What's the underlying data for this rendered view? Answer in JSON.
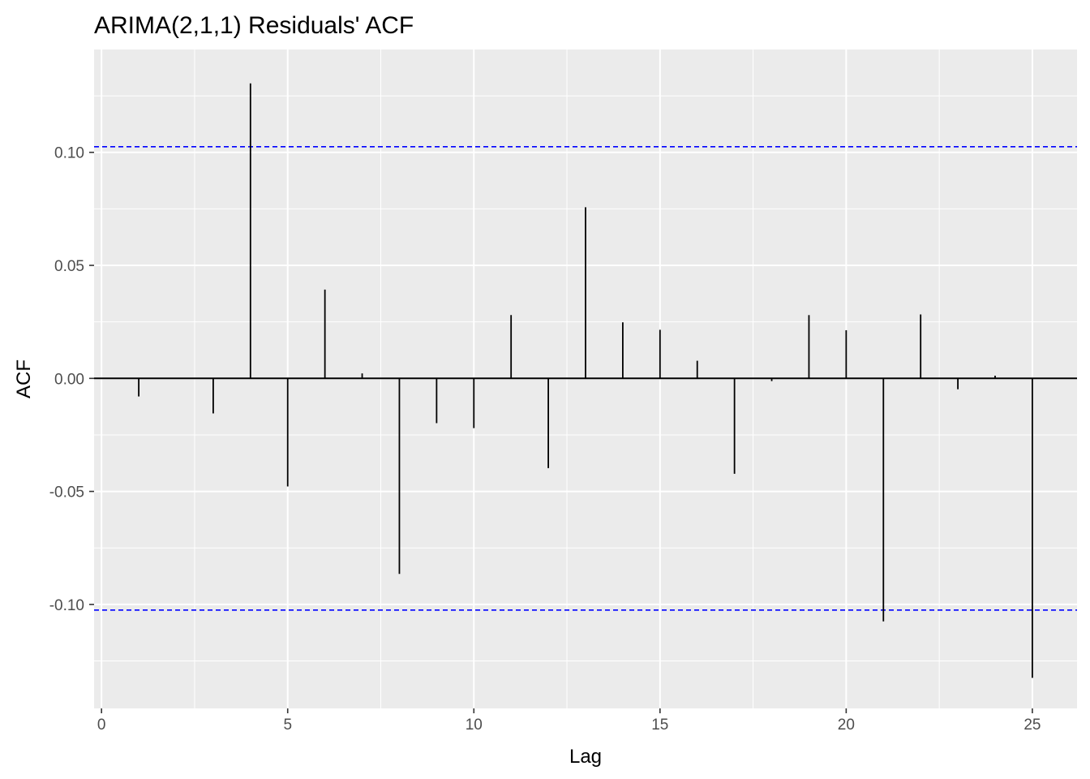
{
  "chart_data": {
    "type": "bar",
    "title": "ARIMA(2,1,1) Residuals' ACF",
    "xlabel": "Lag",
    "ylabel": "ACF",
    "x": [
      1,
      2,
      3,
      4,
      5,
      6,
      7,
      8,
      9,
      10,
      11,
      12,
      13,
      14,
      15,
      16,
      17,
      18,
      19,
      20,
      21,
      22,
      23,
      24,
      25
    ],
    "values": [
      -0.008,
      0.0,
      -0.0155,
      0.1305,
      -0.0478,
      0.0393,
      0.0022,
      -0.0865,
      -0.0198,
      -0.022,
      0.028,
      -0.0397,
      0.0757,
      0.0248,
      0.0215,
      0.0078,
      -0.0422,
      -0.0012,
      0.028,
      0.0213,
      -0.1075,
      0.0283,
      -0.0048,
      0.0012,
      -0.1325
    ],
    "xlim": [
      -0.2,
      26.2
    ],
    "ylim": [
      -0.146,
      0.1455
    ],
    "x_ticks": [
      0,
      5,
      10,
      15,
      20,
      25
    ],
    "x_tick_labels": [
      "0",
      "5",
      "10",
      "15",
      "20",
      "25"
    ],
    "y_ticks": [
      -0.1,
      -0.05,
      0.0,
      0.05,
      0.1
    ],
    "y_tick_labels": [
      "-0.10",
      "-0.05",
      "0.00",
      "0.05",
      "0.10"
    ],
    "confidence_bounds": [
      0.1025,
      -0.1025
    ],
    "zero_line": 0,
    "grid": true,
    "colors": {
      "panel_background": "#ebebeb",
      "grid": "#ffffff",
      "bars": "#000000",
      "confidence_line": "#0000ff"
    }
  }
}
